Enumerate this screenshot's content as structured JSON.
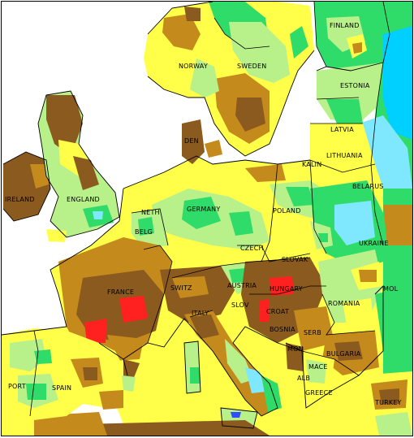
{
  "map": {
    "colors": {
      "sea": "#ffffff",
      "very_dry": "#ff2020",
      "dry": "#8b5a1e",
      "moderately_dry": "#c58a1c",
      "near_normal_dry": "#ffff4a",
      "near_normal_wet": "#b8f08a",
      "moderately_wet": "#2fdc6a",
      "wet": "#7fe8ff",
      "very_wet": "#00d0ff",
      "extremely_wet": "#3050ff",
      "border": "#000000"
    },
    "labels": {
      "finland": "FINLAND",
      "norway": "NORWAY",
      "sweden": "SWEDEN",
      "estonia": "ESTONIA",
      "latvia": "LATVIA",
      "lithuania": "LITHUANIA",
      "den": "DEN",
      "kalin": "KALIN",
      "belarus": "BELARUS",
      "ireland": "IRELAND",
      "england": "ENGLAND",
      "neth": "NETH",
      "germany": "GERMANY",
      "poland": "POLAND",
      "belg": "BELG",
      "ukraine": "UKRAINE",
      "czech": "CZECH",
      "slovak": "SLOVAK",
      "mol": "MOL",
      "france": "FRANCE",
      "switz": "SWITZ",
      "austria": "AUSTRIA",
      "hungary": "HUNGARY",
      "romania": "ROMANIA",
      "italy": "ITALY",
      "croat": "CROAT",
      "bosnia": "BOSNIA",
      "serb": "SERB",
      "bulgaria": "BULGARIA",
      "mon": "MON",
      "mace": "MACE",
      "port": "PORT",
      "spain": "SPAIN",
      "greece": "GREECE",
      "turkey": "TURKEY",
      "slov": "SLOV",
      "alb": "ALB"
    }
  }
}
